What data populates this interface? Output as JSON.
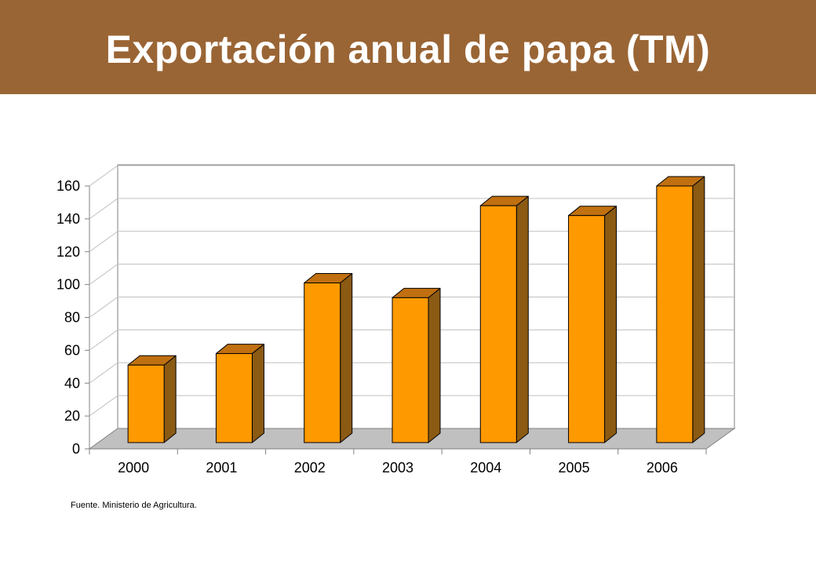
{
  "header": {
    "title": "Exportación anual de papa (TM)",
    "background_color": "#9a6535"
  },
  "chart_data": {
    "type": "bar",
    "style": "3d-column",
    "categories": [
      "2000",
      "2001",
      "2002",
      "2003",
      "2004",
      "2005",
      "2006"
    ],
    "values": [
      51,
      58,
      101,
      92,
      148,
      142,
      160
    ],
    "title": "",
    "xlabel": "",
    "ylabel": "",
    "ylim": [
      0,
      160
    ],
    "yticks": [
      0,
      20,
      40,
      60,
      80,
      100,
      120,
      140,
      160
    ],
    "grid": true,
    "legend": "none",
    "colors": {
      "bar_front": "#ff9900",
      "bar_side": "#8b5a13",
      "bar_top": "#c07010",
      "floor": "#c0c0c0",
      "gridline": "#c0c0c0"
    }
  },
  "footer": {
    "source": "Fuente. Ministerio de Agricultura."
  }
}
